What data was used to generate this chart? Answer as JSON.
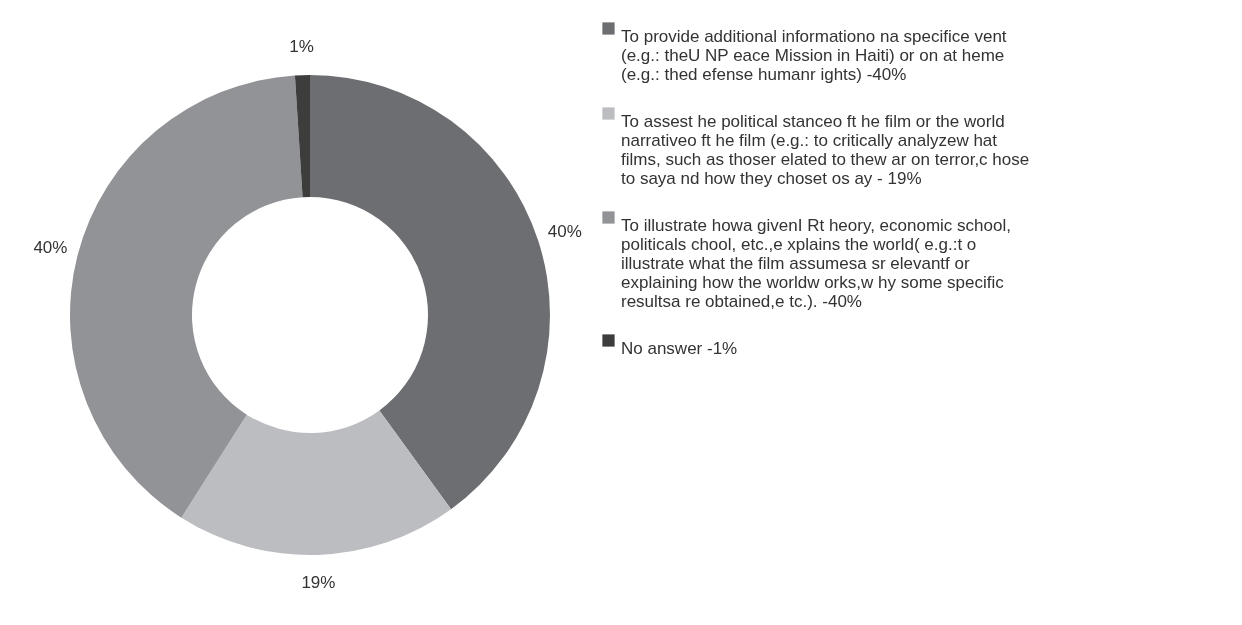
{
  "chart_data": {
    "type": "donut",
    "categories": [
      "To provide additional informationo na  specifice vent (e.g.: theU NP eace Mission in Haiti) or on at heme (e.g.: thed efense humanr ights)  -40%",
      "To assest he political stanceo ft he film or the world narrativeo ft he film (e.g.: to critically analyzew  hat films, such as thoser elated to thew ar on terror,c hose to saya nd how they choset os ay - 19%",
      "To illustrate howa  givenI Rt heory, economic school, politicals chool, etc.,e xplains the world( e.g.:t o illustrate what the film assumesa sr elevantf or explaining how the worldw orks,w hy some specific resultsa re obtained,e tc.).  -40%",
      "No answer  -1%"
    ],
    "values": [
      40,
      19,
      40,
      1
    ],
    "value_labels": [
      "40%",
      "19%",
      "40%",
      "1%"
    ],
    "colors": [
      "#6d6e72",
      "#bcbdc0",
      "#929397",
      "#3d3d3d"
    ],
    "legend": "right"
  }
}
